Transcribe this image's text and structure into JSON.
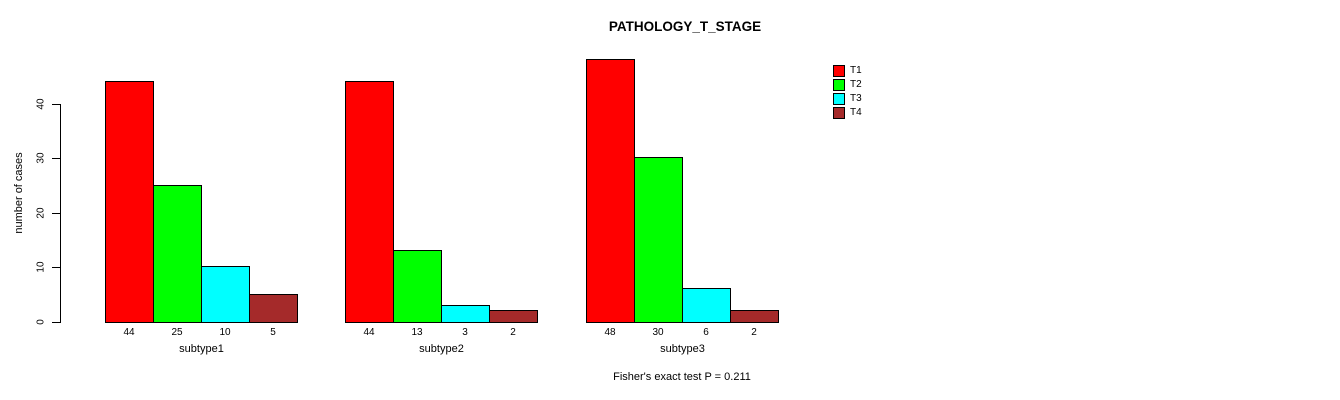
{
  "title": "PATHOLOGY_T_STAGE",
  "annotation": "Fisher's exact test P = 0.211",
  "chart_data": {
    "type": "bar",
    "grouped": true,
    "title": "PATHOLOGY_T_STAGE",
    "categories": [
      "subtype1",
      "subtype2",
      "subtype3"
    ],
    "series": [
      {
        "name": "T1",
        "color": "#FF0000",
        "values": [
          44,
          44,
          48
        ]
      },
      {
        "name": "T2",
        "color": "#00FF00",
        "values": [
          25,
          13,
          30
        ]
      },
      {
        "name": "T3",
        "color": "#00FFFF",
        "values": [
          10,
          3,
          6
        ]
      },
      {
        "name": "T4",
        "color": "#A52A2A",
        "values": [
          5,
          2,
          2
        ]
      }
    ],
    "xlabel": "",
    "ylabel": "number of cases",
    "yticks": [
      0,
      10,
      20,
      30,
      40
    ],
    "ylim": [
      0,
      48
    ],
    "bar_value_labels_shown": true,
    "legend_position": "right",
    "grid": false,
    "annotation": "Fisher's exact test P = 0.211",
    "background_color": "#FFFFFF",
    "bar_border_color": "#000000"
  }
}
